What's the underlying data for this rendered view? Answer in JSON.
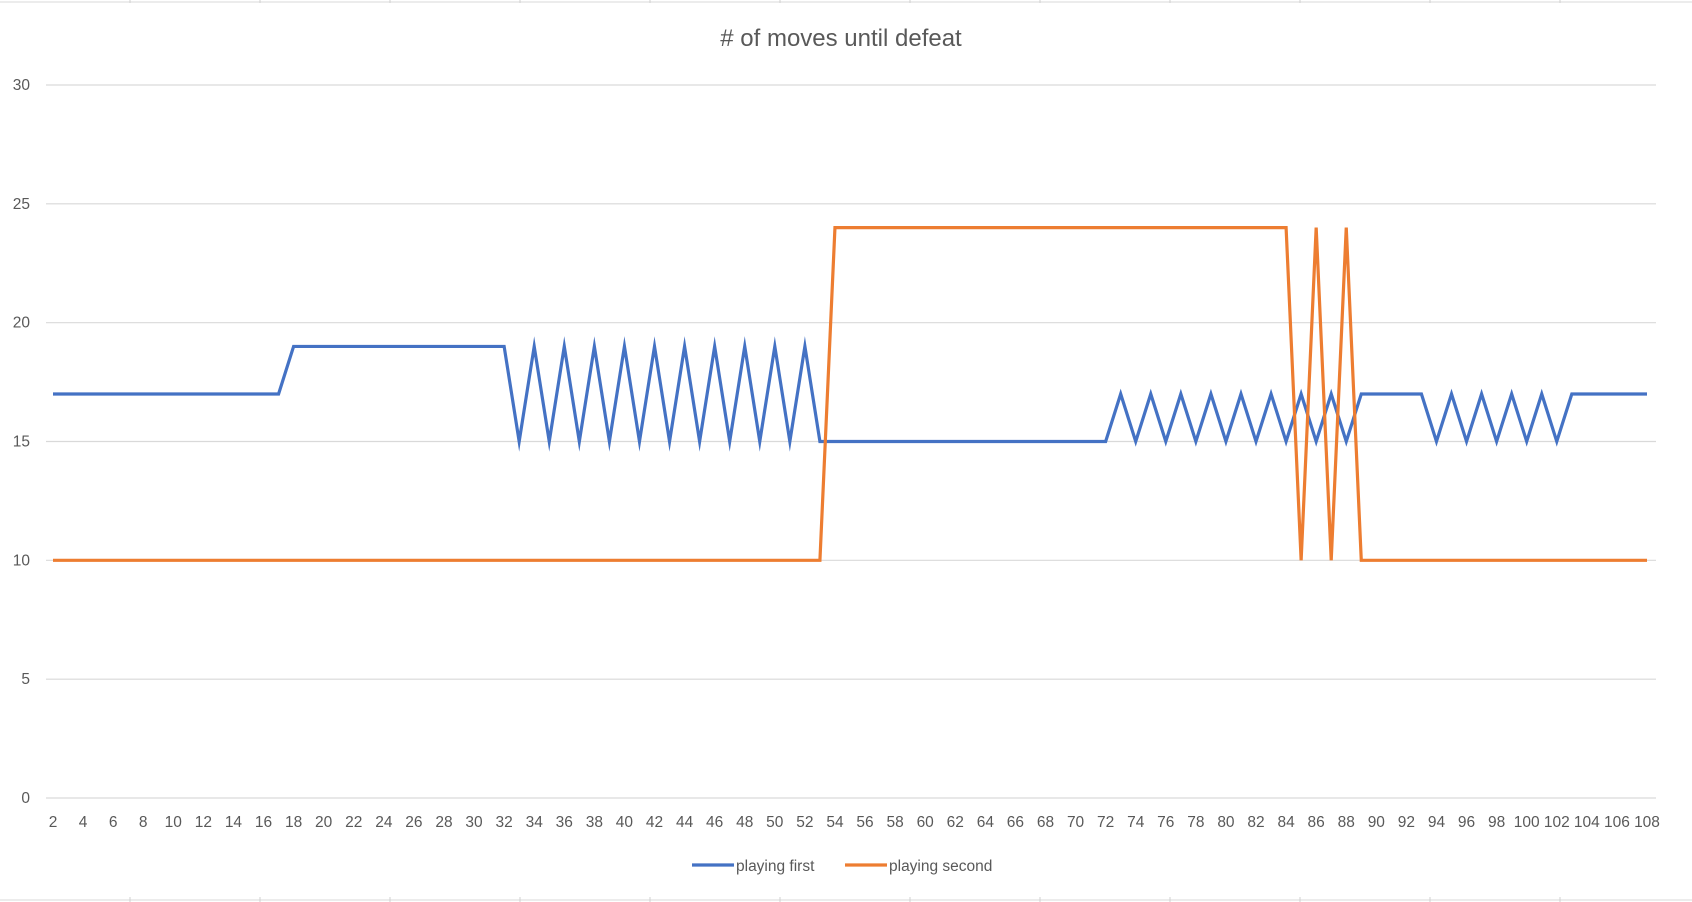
{
  "chart_data": {
    "type": "line",
    "title": "# of moves until defeat",
    "xlabel": "",
    "ylabel": "",
    "ylim": [
      0,
      30
    ],
    "y_ticks": [
      0,
      5,
      10,
      15,
      20,
      25,
      30
    ],
    "x_start": 2,
    "x_end": 108,
    "x_tick_labels": [
      "2",
      "4",
      "6",
      "8",
      "10",
      "12",
      "14",
      "16",
      "18",
      "20",
      "22",
      "24",
      "26",
      "28",
      "30",
      "32",
      "34",
      "36",
      "38",
      "40",
      "42",
      "44",
      "46",
      "48",
      "50",
      "52",
      "54",
      "56",
      "58",
      "60",
      "62",
      "64",
      "66",
      "68",
      "70",
      "72",
      "74",
      "76",
      "78",
      "80",
      "82",
      "84",
      "86",
      "88",
      "90",
      "92",
      "94",
      "96",
      "98",
      "100",
      "102",
      "104",
      "106",
      "108"
    ],
    "grid": true,
    "legend_position": "bottom",
    "series": [
      {
        "name": "playing first",
        "color": "#4472C4",
        "points": [
          [
            2,
            17
          ],
          [
            17,
            17
          ],
          [
            18,
            19
          ],
          [
            32,
            19
          ],
          [
            33,
            15
          ],
          [
            34,
            19
          ],
          [
            35,
            15
          ],
          [
            36,
            19
          ],
          [
            37,
            15
          ],
          [
            38,
            19
          ],
          [
            39,
            15
          ],
          [
            40,
            19
          ],
          [
            41,
            15
          ],
          [
            42,
            19
          ],
          [
            43,
            15
          ],
          [
            44,
            19
          ],
          [
            45,
            15
          ],
          [
            46,
            19
          ],
          [
            47,
            15
          ],
          [
            48,
            19
          ],
          [
            49,
            15
          ],
          [
            50,
            19
          ],
          [
            51,
            15
          ],
          [
            52,
            19
          ],
          [
            53,
            15
          ],
          [
            72,
            15
          ],
          [
            73,
            17
          ],
          [
            74,
            15
          ],
          [
            75,
            17
          ],
          [
            76,
            15
          ],
          [
            77,
            17
          ],
          [
            78,
            15
          ],
          [
            79,
            17
          ],
          [
            80,
            15
          ],
          [
            81,
            17
          ],
          [
            82,
            15
          ],
          [
            83,
            17
          ],
          [
            84,
            15
          ],
          [
            85,
            17
          ],
          [
            86,
            15
          ],
          [
            87,
            17
          ],
          [
            88,
            15
          ],
          [
            89,
            17
          ],
          [
            93,
            17
          ],
          [
            94,
            15
          ],
          [
            95,
            17
          ],
          [
            96,
            15
          ],
          [
            97,
            17
          ],
          [
            98,
            15
          ],
          [
            99,
            17
          ],
          [
            100,
            15
          ],
          [
            101,
            17
          ],
          [
            102,
            15
          ],
          [
            103,
            17
          ],
          [
            108,
            17
          ]
        ]
      },
      {
        "name": "playing second",
        "color": "#ED7D31",
        "points": [
          [
            2,
            10
          ],
          [
            53,
            10
          ],
          [
            54,
            24
          ],
          [
            84,
            24
          ],
          [
            85,
            10
          ],
          [
            86,
            24
          ],
          [
            87,
            10
          ],
          [
            88,
            24
          ],
          [
            89,
            10
          ],
          [
            108,
            10
          ]
        ]
      }
    ]
  }
}
